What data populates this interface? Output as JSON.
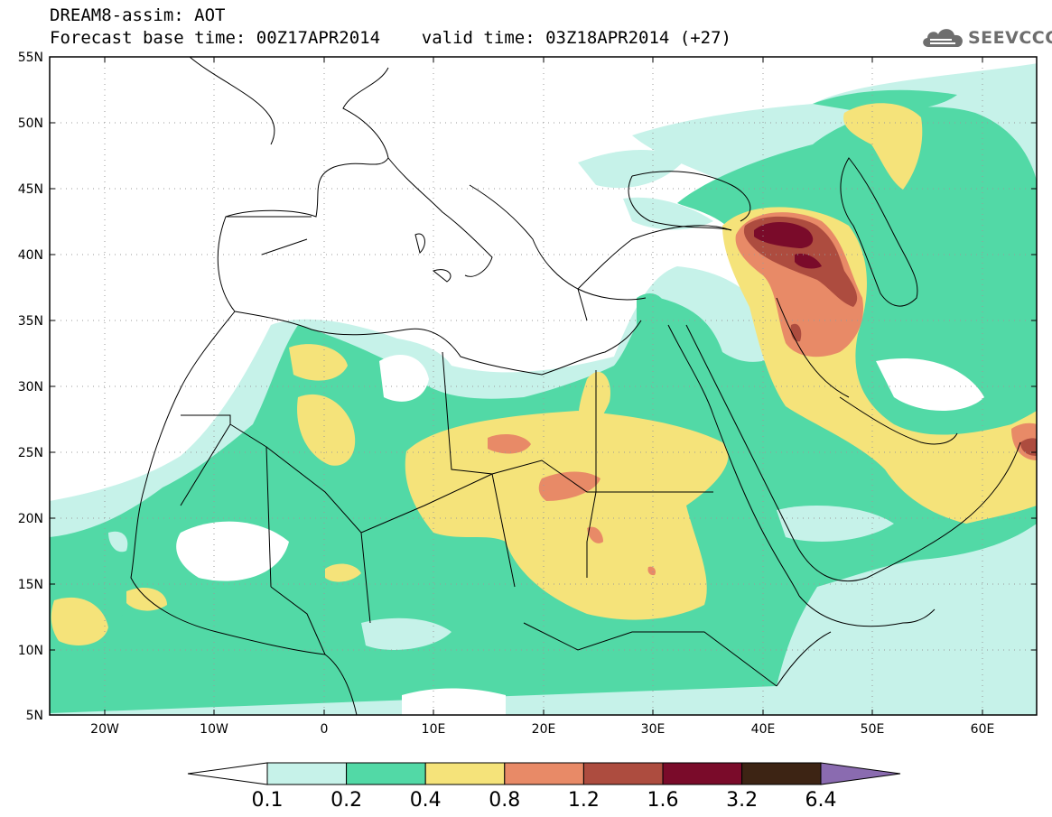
{
  "header": {
    "title": "DREAM8-assim: AOT",
    "forecast_line": "Forecast base time: 00Z17APR2014    valid time: 03Z18APR2014 (+27)"
  },
  "logo": {
    "text": "SEEVCCC",
    "icon": "cloud-icon"
  },
  "map": {
    "lon_range": [
      -25,
      65
    ],
    "lat_range": [
      5,
      55
    ],
    "lat_ticks": [
      {
        "value": 55,
        "label": "55N"
      },
      {
        "value": 50,
        "label": "50N"
      },
      {
        "value": 45,
        "label": "45N"
      },
      {
        "value": 40,
        "label": "40N"
      },
      {
        "value": 35,
        "label": "35N"
      },
      {
        "value": 30,
        "label": "30N"
      },
      {
        "value": 25,
        "label": "25N"
      },
      {
        "value": 20,
        "label": "20N"
      },
      {
        "value": 15,
        "label": "15N"
      },
      {
        "value": 10,
        "label": "10N"
      },
      {
        "value": 5,
        "label": "5N"
      }
    ],
    "lon_ticks": [
      {
        "value": -20,
        "label": "20W"
      },
      {
        "value": -10,
        "label": "10W"
      },
      {
        "value": 0,
        "label": "0"
      },
      {
        "value": 10,
        "label": "10E"
      },
      {
        "value": 20,
        "label": "20E"
      },
      {
        "value": 30,
        "label": "30E"
      },
      {
        "value": 40,
        "label": "40E"
      },
      {
        "value": 50,
        "label": "50E"
      },
      {
        "value": 60,
        "label": "60E"
      }
    ],
    "gridlines": "dotted"
  },
  "colorbar": {
    "levels": [
      "0.1",
      "0.2",
      "0.4",
      "0.8",
      "1.2",
      "1.6",
      "3.2",
      "6.4"
    ],
    "colors": [
      "#ffffff",
      "#c6f2e9",
      "#52d9a6",
      "#f5e37a",
      "#e88a67",
      "#ad4c3f",
      "#7a0b2a",
      "#3d2414",
      "#8a6bb0"
    ]
  }
}
